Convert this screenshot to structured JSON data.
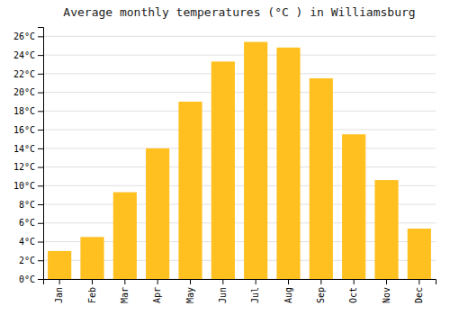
{
  "chart_data": {
    "type": "bar",
    "title": "Average monthly temperatures (°C ) in Williamsburg",
    "categories": [
      "Jan",
      "Feb",
      "Mar",
      "Apr",
      "May",
      "Jun",
      "Jul",
      "Aug",
      "Sep",
      "Oct",
      "Nov",
      "Dec"
    ],
    "values": [
      3.0,
      4.5,
      9.3,
      14.0,
      19.0,
      23.3,
      25.4,
      24.8,
      21.5,
      15.5,
      10.6,
      5.4
    ],
    "color": "#FFC020",
    "ylim": [
      0,
      27
    ],
    "yticks": [
      {
        "value": 0,
        "label": "0°C"
      },
      {
        "value": 2,
        "label": "2°C"
      },
      {
        "value": 4,
        "label": "4°C"
      },
      {
        "value": 6,
        "label": "6°C"
      },
      {
        "value": 8,
        "label": "8°C"
      },
      {
        "value": 10,
        "label": "10°C"
      },
      {
        "value": 12,
        "label": "12°C"
      },
      {
        "value": 14,
        "label": "14°C"
      },
      {
        "value": 16,
        "label": "16°C"
      },
      {
        "value": 18,
        "label": "18°C"
      },
      {
        "value": 20,
        "label": "20°C"
      },
      {
        "value": 22,
        "label": "22°C"
      },
      {
        "value": 24,
        "label": "24°C"
      },
      {
        "value": 26,
        "label": "26°C"
      }
    ],
    "grid": true
  }
}
